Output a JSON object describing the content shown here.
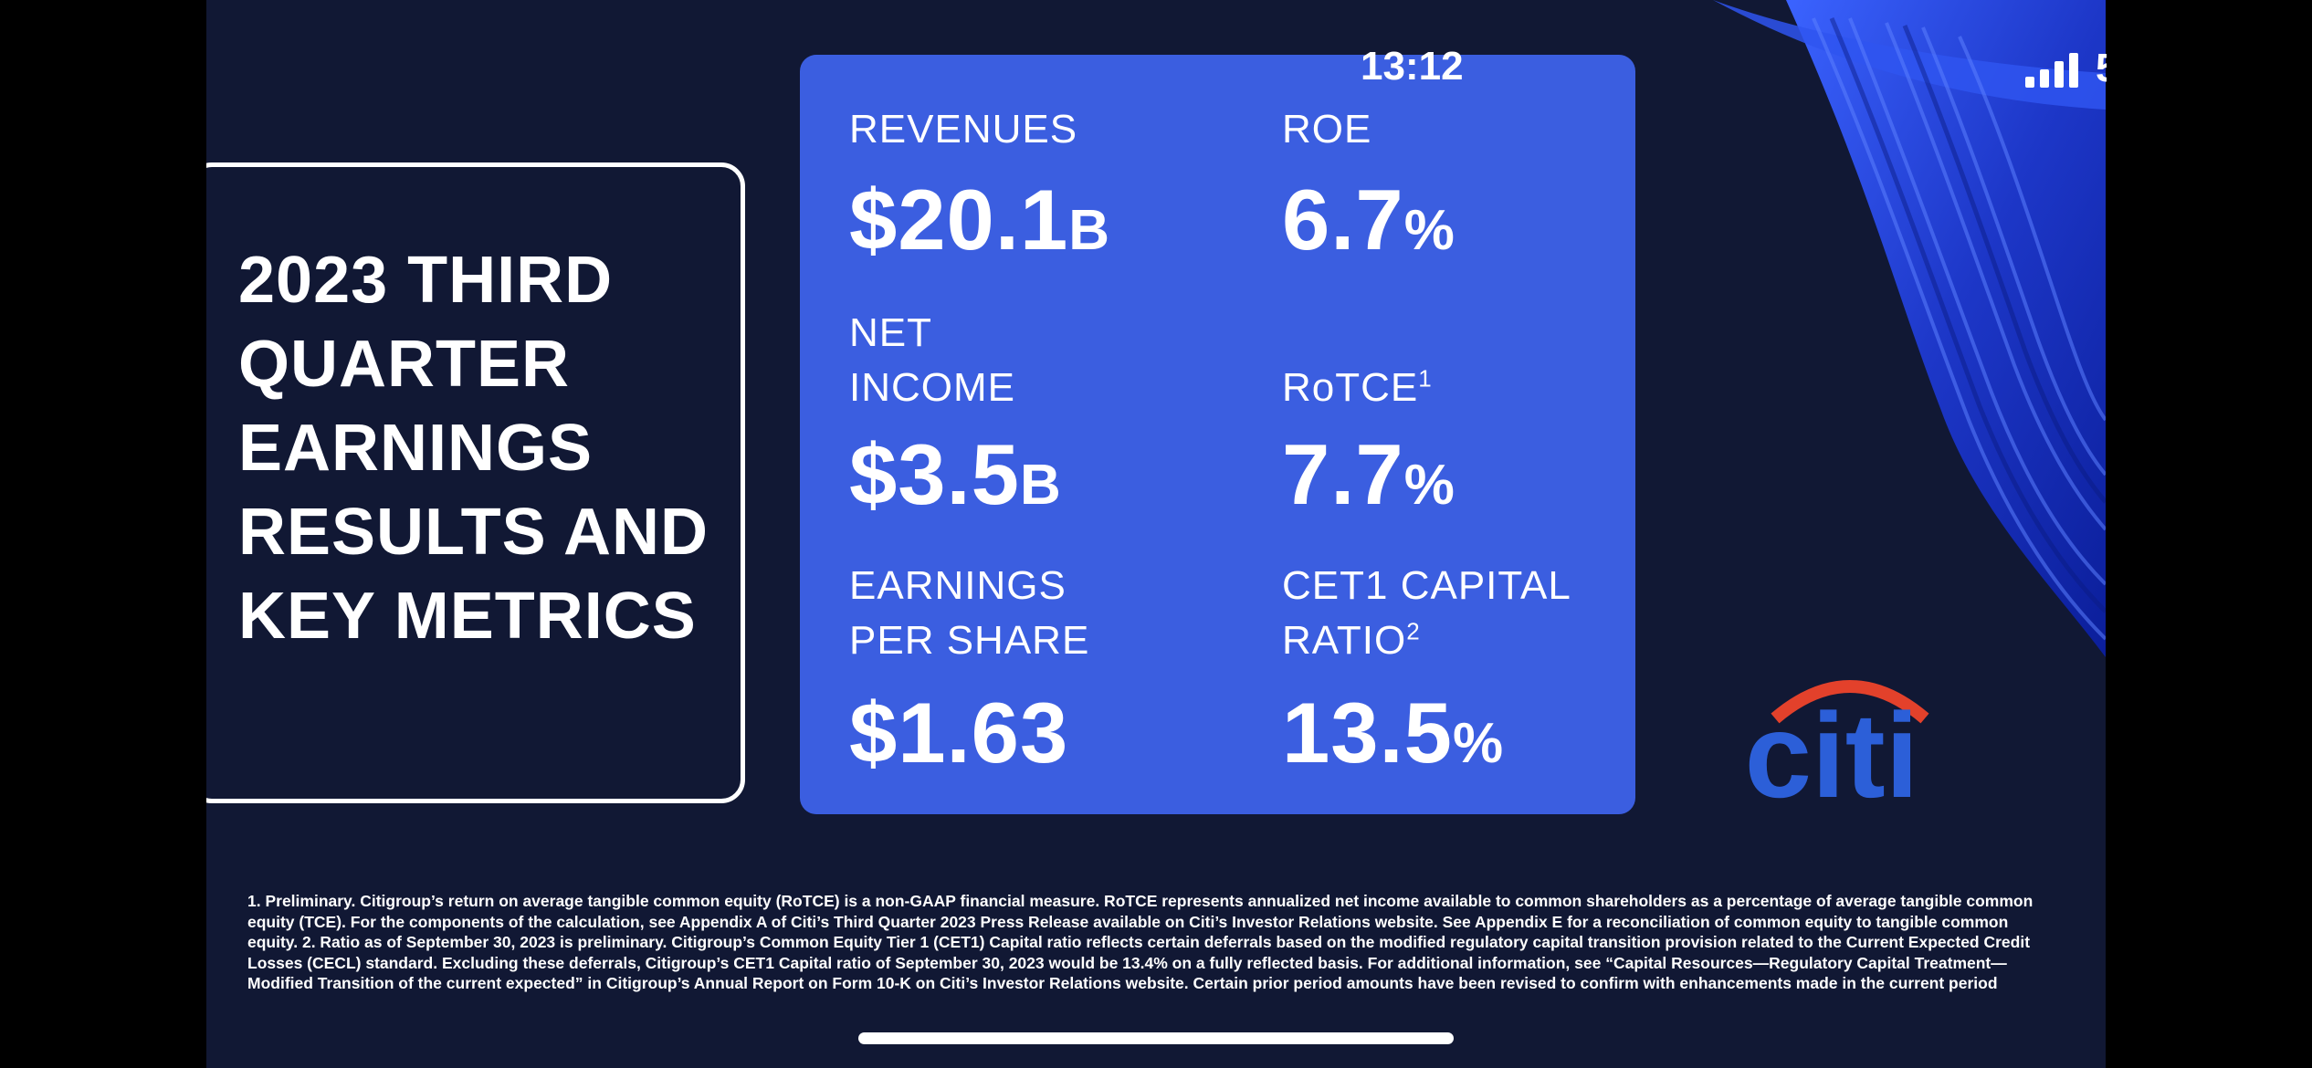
{
  "status_bar": {
    "time": "13:12",
    "battery": "5"
  },
  "slide": {
    "title": "2023 THIRD QUARTER EARNINGS RESULTS AND KEY METRICS",
    "metrics": {
      "revenues": {
        "label": "REVENUES",
        "prefix": "$",
        "number": "20.1",
        "unit": "B"
      },
      "roe": {
        "label": "ROE",
        "number": "6.7",
        "unit": "%"
      },
      "net_income": {
        "label_line1": "NET",
        "label_line2": "INCOME",
        "prefix": "$",
        "number": "3.5",
        "unit": "B"
      },
      "rotce": {
        "label": "RoTCE",
        "footnote_ref": "1",
        "number": "7.7",
        "unit": "%"
      },
      "eps": {
        "label_line1": "EARNINGS",
        "label_line2": "PER SHARE",
        "prefix": "$",
        "number": "1.63"
      },
      "cet1": {
        "label_line1": "CET1 CAPITAL",
        "label_line2": "RATIO",
        "footnote_ref": "2",
        "number": "13.5",
        "unit": "%"
      }
    },
    "logo": {
      "wordmark": "citi",
      "arc_color": "#e3412b",
      "text_color": "#2c5fd8"
    },
    "footnote": "1. Preliminary. Citigroup’s return on average tangible common equity (RoTCE) is a non-GAAP financial measure. RoTCE represents annualized net income available to common shareholders as a percentage of average tangible common equity (TCE). For the components of the calculation, see Appendix A of Citi’s Third Quarter 2023 Press Release available on Citi’s Investor Relations website. See Appendix E for a reconciliation of common equity to tangible common equity. 2. Ratio as of September 30, 2023 is preliminary. Citigroup’s Common Equity Tier 1 (CET1) Capital ratio reflects certain deferrals based on the modified regulatory capital transition provision related to the Current Expected Credit Losses (CECL) standard. Excluding these deferrals, Citigroup’s CET1 Capital ratio of September 30, 2023 would be 13.4% on a fully reflected basis. For additional information, see “Capital Resources—Regulatory Capital Treatment—Modified Transition of the current expected” in Citigroup’s Annual Report on Form 10-K on Citi’s Investor Relations website. Certain prior period amounts have been revised to confirm with enhancements made in the current period"
  },
  "colors": {
    "background": "#111834",
    "card": "#3b5ee0",
    "text": "#ffffff"
  }
}
